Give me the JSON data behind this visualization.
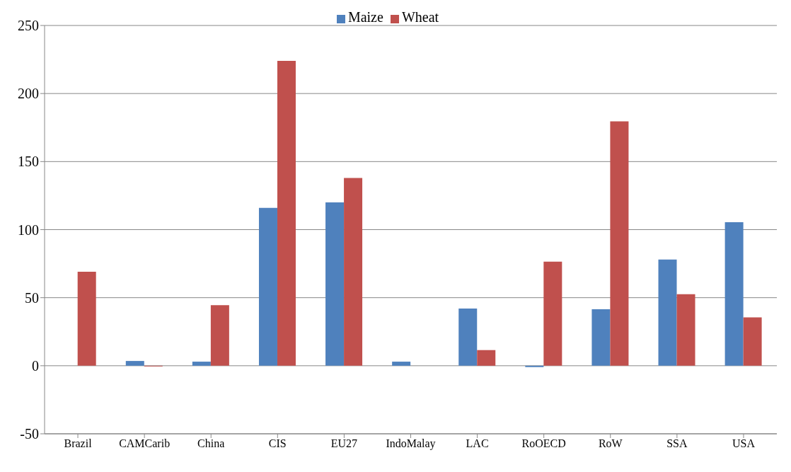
{
  "chart_data": {
    "type": "bar",
    "categories": [
      "Brazil",
      "CAMCarib",
      "China",
      "CIS",
      "EU27",
      "IndoMalay",
      "LAC",
      "RoOECD",
      "RoW",
      "SSA",
      "USA"
    ],
    "series": [
      {
        "name": "Maize",
        "color": "#4f81bd",
        "values": [
          0,
          3.5,
          3,
          116,
          120,
          3,
          42,
          -1,
          41.5,
          78,
          105.5
        ]
      },
      {
        "name": "Wheat",
        "color": "#c0504d",
        "values": [
          69,
          -0.5,
          44.5,
          224,
          138,
          0,
          11.5,
          76.5,
          179.5,
          52.5,
          35.5
        ]
      }
    ],
    "ylim": [
      -50,
      250
    ],
    "yticks": [
      -50,
      0,
      50,
      100,
      150,
      200,
      250
    ],
    "grid": "y",
    "legend": "top"
  }
}
